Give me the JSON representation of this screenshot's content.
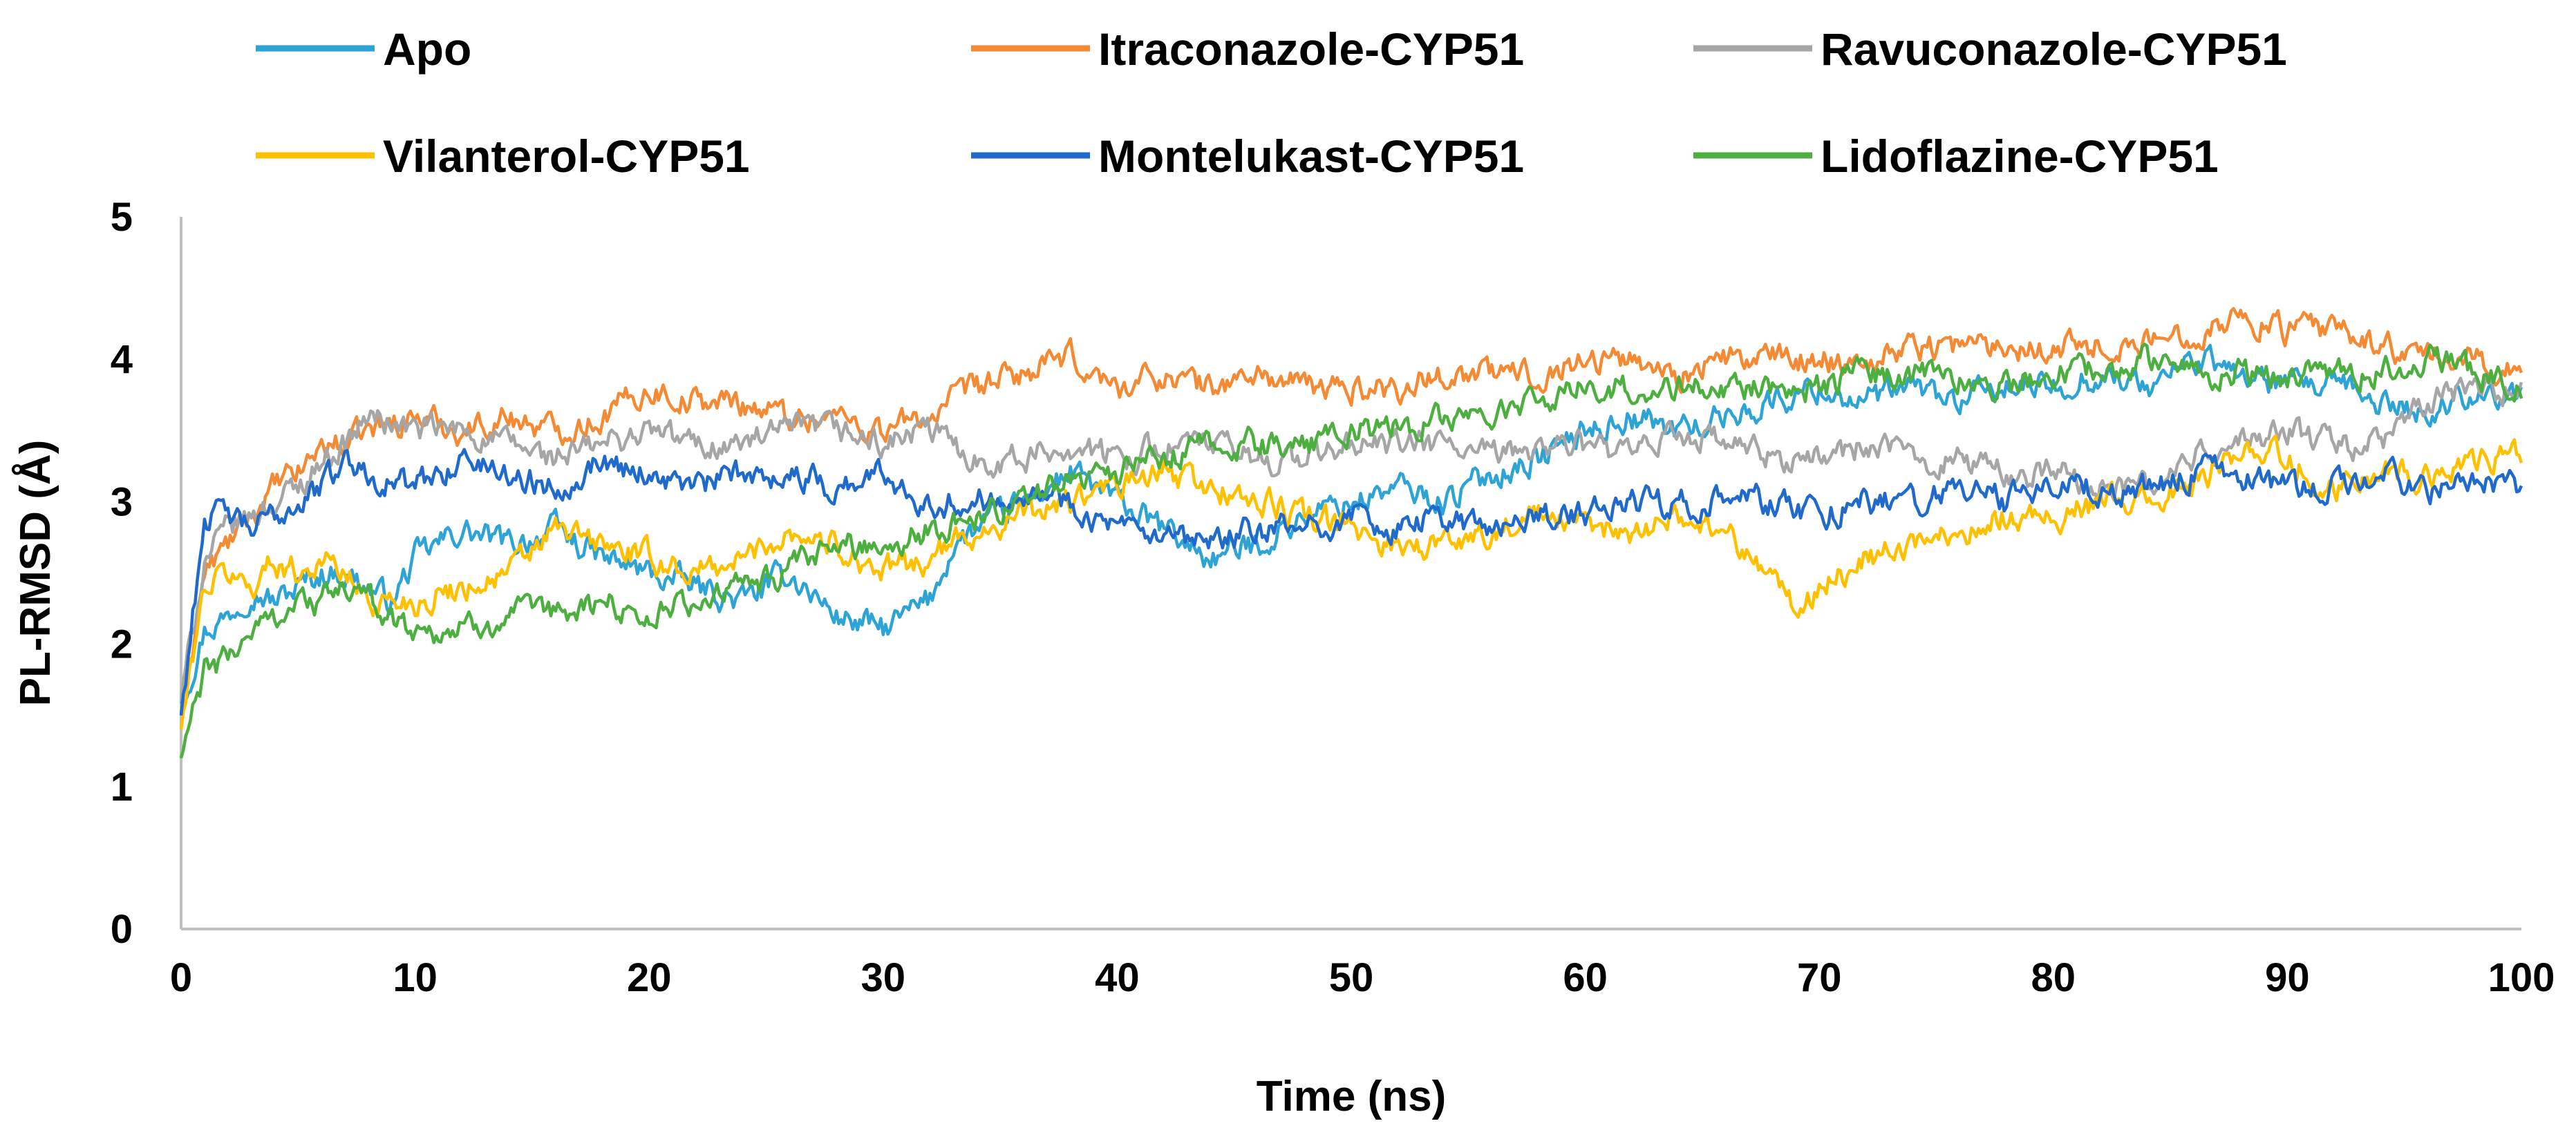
{
  "chart_data": {
    "type": "line",
    "title": "",
    "xlabel": "Time (ns)",
    "ylabel": "PL-RMSD (Å)",
    "xlim": [
      0,
      100
    ],
    "ylim": [
      0,
      5
    ],
    "xticks": [
      0,
      10,
      20,
      30,
      40,
      50,
      60,
      70,
      80,
      90,
      100
    ],
    "yticks": [
      0,
      1,
      2,
      3,
      4,
      5
    ],
    "grid": false,
    "legend_position": "top",
    "series": [
      {
        "name": "Apo",
        "color": "#2EA3D6",
        "x": [
          0,
          1,
          2,
          3,
          4,
          5,
          6,
          7,
          8,
          9,
          10,
          12,
          14,
          16,
          18,
          20,
          22,
          24,
          26,
          28,
          30,
          32,
          33,
          34,
          36,
          38,
          40,
          42,
          44,
          46,
          48,
          50,
          52,
          54,
          56,
          58,
          60,
          62,
          64,
          66,
          68,
          70,
          72,
          74,
          76,
          78,
          80,
          82,
          84,
          86,
          88,
          90,
          92,
          94,
          96,
          98,
          100
        ],
        "y": [
          1.6,
          2.1,
          2.2,
          2.4,
          2.3,
          2.4,
          2.5,
          2.5,
          2.4,
          2.3,
          2.6,
          2.8,
          2.7,
          2.8,
          2.6,
          2.5,
          2.4,
          2.3,
          2.5,
          2.2,
          2.1,
          2.3,
          2.7,
          2.8,
          3.0,
          3.2,
          3.0,
          2.8,
          2.6,
          2.7,
          2.9,
          3.0,
          3.1,
          3.0,
          3.2,
          3.3,
          3.5,
          3.6,
          3.5,
          3.6,
          3.7,
          3.8,
          3.7,
          3.8,
          3.7,
          3.8,
          3.8,
          3.9,
          3.8,
          4.0,
          3.9,
          3.8,
          3.8,
          3.7,
          3.6,
          3.8,
          3.7
        ]
      },
      {
        "name": "Itraconazole-CYP51",
        "color": "#F58A35",
        "x": [
          0,
          1,
          2,
          3,
          4,
          5,
          6,
          7,
          8,
          10,
          12,
          14,
          16,
          18,
          20,
          22,
          24,
          26,
          28,
          30,
          32,
          34,
          36,
          38,
          40,
          42,
          44,
          46,
          48,
          50,
          52,
          54,
          56,
          58,
          60,
          62,
          64,
          66,
          68,
          70,
          72,
          74,
          76,
          78,
          80,
          82,
          84,
          86,
          88,
          90,
          92,
          94,
          96,
          98,
          100
        ],
        "y": [
          1.5,
          2.5,
          2.7,
          2.9,
          3.1,
          3.2,
          3.4,
          3.4,
          3.5,
          3.6,
          3.5,
          3.6,
          3.5,
          3.6,
          3.8,
          3.7,
          3.7,
          3.6,
          3.6,
          3.5,
          3.6,
          3.8,
          3.9,
          4.0,
          3.8,
          3.9,
          3.8,
          3.9,
          3.8,
          3.8,
          3.8,
          3.9,
          3.9,
          3.9,
          4.0,
          4.0,
          3.9,
          4.0,
          4.0,
          4.0,
          4.0,
          4.1,
          4.1,
          4.1,
          4.1,
          4.1,
          4.1,
          4.2,
          4.3,
          4.2,
          4.2,
          4.1,
          4.0,
          4.0,
          3.9
        ]
      },
      {
        "name": "Ravuconazole-CYP51",
        "color": "#A6A6A6",
        "x": [
          0,
          1,
          2,
          3,
          4,
          5,
          6,
          7,
          8,
          10,
          12,
          14,
          16,
          18,
          20,
          22,
          24,
          26,
          28,
          30,
          32,
          34,
          36,
          38,
          40,
          42,
          44,
          46,
          48,
          50,
          52,
          54,
          56,
          58,
          60,
          62,
          64,
          66,
          68,
          70,
          72,
          74,
          76,
          78,
          80,
          82,
          84,
          86,
          88,
          90,
          92,
          94,
          96,
          98,
          100
        ],
        "y": [
          1.6,
          2.6,
          2.8,
          2.9,
          3.0,
          3.1,
          3.3,
          3.4,
          3.6,
          3.5,
          3.5,
          3.4,
          3.3,
          3.4,
          3.5,
          3.4,
          3.4,
          3.5,
          3.5,
          3.4,
          3.5,
          3.3,
          3.3,
          3.4,
          3.3,
          3.4,
          3.4,
          3.3,
          3.3,
          3.4,
          3.4,
          3.4,
          3.3,
          3.4,
          3.4,
          3.3,
          3.5,
          3.4,
          3.3,
          3.3,
          3.4,
          3.3,
          3.3,
          3.2,
          3.2,
          3.1,
          3.1,
          3.3,
          3.4,
          3.5,
          3.4,
          3.4,
          3.7,
          3.8,
          3.8
        ]
      },
      {
        "name": "Vilanterol-CYP51",
        "color": "#FFC000",
        "x": [
          0,
          1,
          2,
          3,
          4,
          5,
          6,
          7,
          8,
          10,
          12,
          14,
          16,
          18,
          20,
          22,
          24,
          26,
          28,
          30,
          32,
          34,
          36,
          38,
          40,
          42,
          44,
          46,
          48,
          50,
          52,
          54,
          56,
          58,
          60,
          62,
          64,
          66,
          68,
          69,
          70,
          72,
          74,
          76,
          78,
          80,
          82,
          84,
          86,
          88,
          90,
          92,
          94,
          96,
          98,
          100
        ],
        "y": [
          1.4,
          2.4,
          2.5,
          2.4,
          2.6,
          2.5,
          2.6,
          2.5,
          2.3,
          2.3,
          2.4,
          2.5,
          2.8,
          2.7,
          2.6,
          2.5,
          2.6,
          2.8,
          2.7,
          2.5,
          2.6,
          2.8,
          2.9,
          3.0,
          3.1,
          3.2,
          3.1,
          3.0,
          2.9,
          2.8,
          2.7,
          2.7,
          2.8,
          2.9,
          2.8,
          2.8,
          2.9,
          2.8,
          2.5,
          2.2,
          2.4,
          2.6,
          2.7,
          2.8,
          2.9,
          2.9,
          3.0,
          3.0,
          3.1,
          3.4,
          3.3,
          3.1,
          3.2,
          3.2,
          3.3,
          3.3
        ]
      },
      {
        "name": "Montelukast-CYP51",
        "color": "#1F6ACB",
        "x": [
          0,
          1,
          2,
          3,
          4,
          5,
          6,
          7,
          8,
          10,
          12,
          14,
          16,
          18,
          20,
          22,
          24,
          26,
          28,
          30,
          32,
          34,
          36,
          38,
          40,
          42,
          44,
          46,
          48,
          50,
          52,
          54,
          56,
          58,
          60,
          62,
          64,
          66,
          68,
          70,
          72,
          74,
          76,
          78,
          80,
          82,
          84,
          86,
          88,
          90,
          92,
          94,
          96,
          98,
          100
        ],
        "y": [
          1.5,
          2.9,
          2.9,
          2.8,
          2.9,
          3.0,
          3.1,
          3.3,
          3.2,
          3.1,
          3.3,
          3.2,
          3.1,
          3.3,
          3.2,
          3.1,
          3.2,
          3.2,
          3.1,
          3.2,
          3.0,
          3.0,
          3.1,
          3.0,
          2.8,
          2.7,
          2.7,
          2.8,
          2.8,
          2.9,
          2.8,
          2.9,
          2.8,
          2.9,
          2.9,
          3.0,
          3.0,
          3.0,
          3.0,
          2.9,
          3.0,
          3.0,
          3.1,
          3.0,
          3.1,
          3.1,
          3.1,
          3.2,
          3.2,
          3.1,
          3.1,
          3.2,
          3.1,
          3.1,
          3.1
        ]
      },
      {
        "name": "Lidoflazine-CYP51",
        "color": "#4CAF3F",
        "x": [
          0,
          1,
          2,
          3,
          4,
          5,
          6,
          7,
          8,
          10,
          12,
          14,
          16,
          18,
          20,
          22,
          24,
          26,
          28,
          30,
          32,
          34,
          36,
          38,
          40,
          42,
          44,
          46,
          48,
          50,
          52,
          54,
          56,
          58,
          60,
          62,
          64,
          66,
          68,
          70,
          72,
          74,
          76,
          78,
          80,
          82,
          84,
          86,
          88,
          90,
          92,
          94,
          96,
          98,
          100
        ],
        "y": [
          1.2,
          1.8,
          1.9,
          2.1,
          2.2,
          2.3,
          2.3,
          2.4,
          2.3,
          2.1,
          2.1,
          2.2,
          2.2,
          2.3,
          2.2,
          2.3,
          2.4,
          2.5,
          2.7,
          2.7,
          2.8,
          2.9,
          3.0,
          3.2,
          3.2,
          3.3,
          3.4,
          3.4,
          3.4,
          3.5,
          3.5,
          3.6,
          3.6,
          3.7,
          3.8,
          3.8,
          3.8,
          3.8,
          3.8,
          3.8,
          3.9,
          3.9,
          3.9,
          3.8,
          3.9,
          3.9,
          4.0,
          3.9,
          3.9,
          3.9,
          3.9,
          3.9,
          4.0,
          3.9,
          3.8
        ]
      }
    ]
  }
}
